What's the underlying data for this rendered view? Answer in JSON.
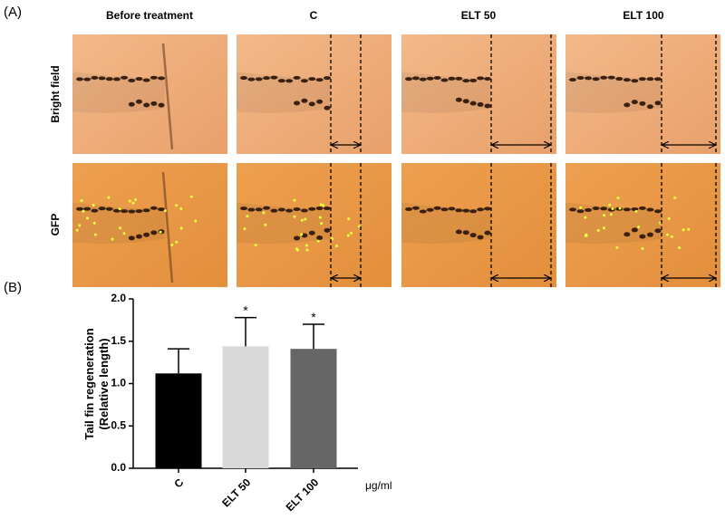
{
  "panel_a": {
    "label": "(A)",
    "columns": [
      "Before treatment",
      "C",
      "ELT 50",
      "ELT 100"
    ],
    "rows": [
      "Bright field",
      "GFP"
    ]
  },
  "panel_b": {
    "label": "(B)"
  },
  "chart_data": {
    "type": "bar",
    "categories": [
      "C",
      "ELT 50",
      "ELT 100"
    ],
    "values": [
      1.12,
      1.44,
      1.41
    ],
    "errors": [
      0.29,
      0.34,
      0.29
    ],
    "colors": [
      "#000000",
      "#d9d9d9",
      "#666666"
    ],
    "significance": [
      null,
      "*",
      "*"
    ],
    "ylabel": [
      "Tail fin regeneration",
      "(Relative length)"
    ],
    "x_unit": "μg/ml",
    "ylim": [
      0,
      2
    ],
    "yticks": [
      {
        "value": 0,
        "label": "0.0"
      },
      0.5,
      {
        "value": 1,
        "label": "1.0"
      },
      1.5,
      {
        "value": 2,
        "label": "2.0"
      }
    ],
    "grid": false
  }
}
